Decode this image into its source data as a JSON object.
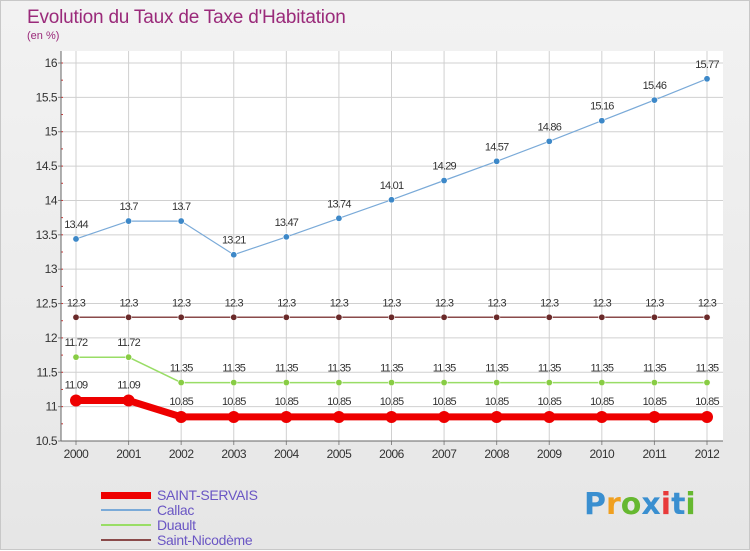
{
  "header": {
    "title": "Evolution du Taux de Taxe d'Habitation",
    "subtitle": "(en %)"
  },
  "brand": {
    "letters": [
      "P",
      "r",
      "o",
      "x",
      "i",
      "t",
      "i"
    ],
    "colors": [
      "#3a8fd0",
      "#f0a020",
      "#66b830",
      "#3a8fd0",
      "#e83a3a",
      "#3a8fd0",
      "#66b830"
    ]
  },
  "chart_data": {
    "type": "line",
    "title": "Evolution du Taux de Taxe d'Habitation",
    "ylabel": "(en %)",
    "xlabel": "",
    "x": [
      "2000",
      "2001",
      "2002",
      "2003",
      "2004",
      "2005",
      "2006",
      "2007",
      "2008",
      "2009",
      "2010",
      "2011",
      "2012"
    ],
    "ylim": [
      10.5,
      16
    ],
    "yticks": [
      "10.5",
      "11",
      "11.5",
      "12",
      "12.5",
      "13",
      "13.5",
      "14",
      "14.5",
      "15",
      "15.5",
      "16"
    ],
    "grid": true,
    "legend_position": "bottom-left",
    "series": [
      {
        "name": "SAINT-SERVAIS",
        "color": "#ee0000",
        "values": [
          11.09,
          11.09,
          10.85,
          10.85,
          10.85,
          10.85,
          10.85,
          10.85,
          10.85,
          10.85,
          10.85,
          10.85,
          10.85
        ],
        "labels": [
          "11.09",
          "11.09",
          "10.85",
          "10.85",
          "10.85",
          "10.85",
          "10.85",
          "10.85",
          "10.85",
          "10.85",
          "10.85",
          "10.85",
          "10.85"
        ]
      },
      {
        "name": "Callac",
        "color": "#7aaad8",
        "values": [
          13.44,
          13.7,
          13.7,
          13.21,
          13.47,
          13.74,
          14.01,
          14.29,
          14.57,
          14.86,
          15.16,
          15.46,
          15.77
        ],
        "labels": [
          "13.44",
          "13.7",
          "13.7",
          "13.21",
          "13.47",
          "13.74",
          "14.01",
          "14.29",
          "14.57",
          "14.86",
          "15.16",
          "15.46",
          "15.77"
        ]
      },
      {
        "name": "Duault",
        "color": "#99dd66",
        "values": [
          11.72,
          11.72,
          11.35,
          11.35,
          11.35,
          11.35,
          11.35,
          11.35,
          11.35,
          11.35,
          11.35,
          11.35,
          11.35
        ],
        "labels": [
          "11.72",
          "11.72",
          "11.35",
          "11.35",
          "11.35",
          "11.35",
          "11.35",
          "11.35",
          "11.35",
          "11.35",
          "11.35",
          "11.35",
          "11.35"
        ]
      },
      {
        "name": "Saint-Nicodème",
        "color": "#8a4a4a",
        "values": [
          12.3,
          12.3,
          12.3,
          12.3,
          12.3,
          12.3,
          12.3,
          12.3,
          12.3,
          12.3,
          12.3,
          12.3,
          12.3
        ],
        "labels": [
          "12.3",
          "12.3",
          "12.3",
          "12.3",
          "12.3",
          "12.3",
          "12.3",
          "12.3",
          "12.3",
          "12.3",
          "12.3",
          "12.3",
          "12.3"
        ]
      }
    ]
  }
}
